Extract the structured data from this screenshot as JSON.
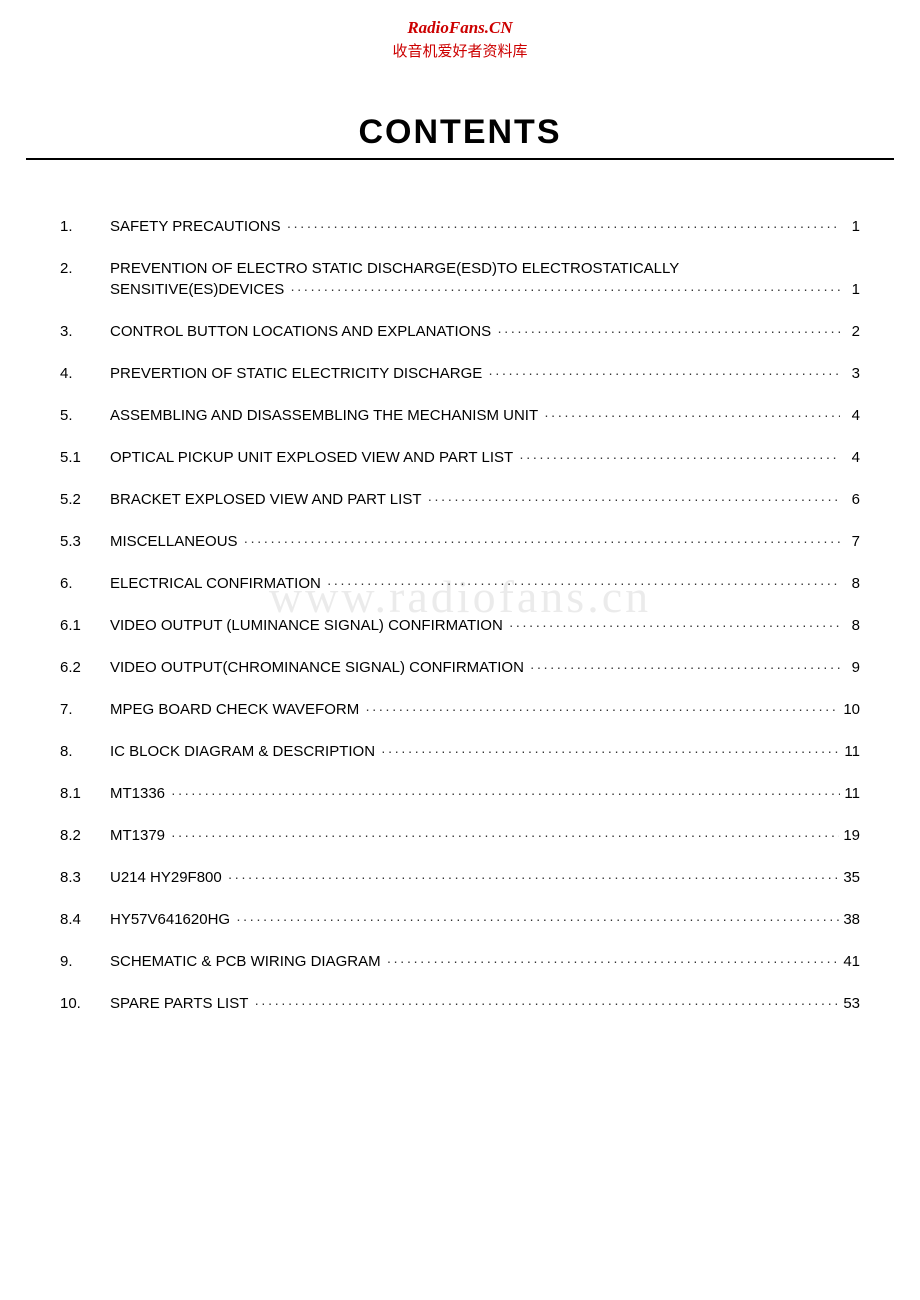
{
  "header": {
    "brand": "RadioFans.CN",
    "subtitle": "收音机爱好者资料库"
  },
  "title": "CONTENTS",
  "watermark": "www.radiofans.cn",
  "toc": [
    {
      "num": "1.",
      "label": "SAFETY PRECAUTIONS",
      "page": "1",
      "multiline": false
    },
    {
      "num": "2.",
      "label": "PREVENTION OF ELECTRO STATIC DISCHARGE(ESD)TO  ELECTROSTATICALLY",
      "label2": "SENSITIVE(ES)DEVICES",
      "page": "1",
      "multiline": true
    },
    {
      "num": "3.",
      "label": "CONTROL BUTTON LOCATIONS AND EXPLANATIONS",
      "page": "2",
      "multiline": false
    },
    {
      "num": "4.",
      "label": "PREVERTION OF STATIC ELECTRICITY DISCHARGE",
      "page": "3",
      "multiline": false
    },
    {
      "num": "5.",
      "label": "ASSEMBLING AND DISASSEMBLING THE MECHANISM UNIT",
      "page": "4",
      "multiline": false
    },
    {
      "num": "5.1",
      "label": "OPTICAL PICKUP UNIT EXPLOSED VIEW AND PART LIST",
      "page": "4",
      "multiline": false
    },
    {
      "num": "5.2",
      "label": "BRACKET EXPLOSED VIEW AND PART LIST",
      "page": "6",
      "multiline": false
    },
    {
      "num": "5.3",
      "label": "MISCELLANEOUS",
      "page": "7",
      "multiline": false
    },
    {
      "num": "6.",
      "label": "ELECTRICAL CONFIRMATION",
      "page": "8",
      "multiline": false
    },
    {
      "num": "6.1",
      "label": "VIDEO OUTPUT (LUMINANCE SIGNAL) CONFIRMATION",
      "page": "8",
      "multiline": false
    },
    {
      "num": "6.2",
      "label": "VIDEO OUTPUT(CHROMINANCE SIGNAL) CONFIRMATION",
      "page": "9",
      "multiline": false
    },
    {
      "num": "7.",
      "label": "MPEG BOARD CHECK WAVEFORM",
      "page": "10",
      "multiline": false
    },
    {
      "num": "8.",
      "label": "IC BLOCK DIAGRAM & DESCRIPTION",
      "page": "11",
      "multiline": false
    },
    {
      "num": "8.1",
      "label": "MT1336",
      "page": "11",
      "multiline": false
    },
    {
      "num": "8.2",
      "label": "MT1379",
      "page": "19",
      "multiline": false
    },
    {
      "num": "8.3",
      "label": "U214 HY29F800",
      "page": "35",
      "multiline": false
    },
    {
      "num": "8.4",
      "label": "HY57V641620HG",
      "page": "38",
      "multiline": false
    },
    {
      "num": "9.",
      "label": "SCHEMATIC & PCB WIRING DIAGRAM",
      "page": "41",
      "multiline": false
    },
    {
      "num": "10.",
      "label": "SPARE PARTS LIST",
      "page": "53",
      "multiline": false
    }
  ],
  "colors": {
    "brand_red": "#cc0000",
    "text": "#000000",
    "background": "#ffffff",
    "watermark": "rgba(0,0,0,0.08)"
  },
  "dots": "·······································································································································"
}
